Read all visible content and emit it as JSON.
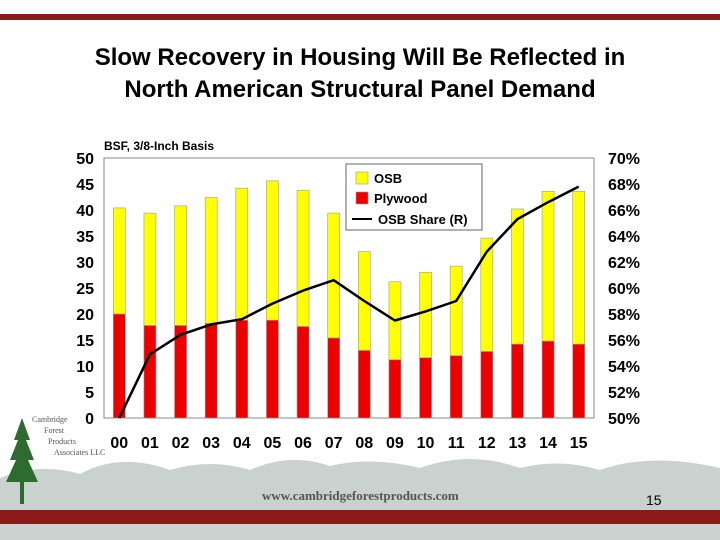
{
  "slide": {
    "title_line1": "Slow Recovery in Housing Will Be Reflected in",
    "title_line2": "North American Structural Panel Demand",
    "logo_line1": "Cambridge",
    "logo_line2": "Forest",
    "logo_line3": "Products",
    "logo_line4": "Associates LLC",
    "website": "www.cambridgeforestproducts.com",
    "page_number": "15"
  },
  "colors": {
    "bar_border": "#8b1a1a",
    "osb": "#ffff00",
    "plywood": "#ee0000",
    "share_line": "#000000",
    "grid_bg": "#ffffff",
    "hills": "#c9d2cf",
    "tree": "#2e6b2e",
    "text_gray": "#555555"
  },
  "chart_data": {
    "type": "bar",
    "stacked": true,
    "unit_label": "BSF, 3/8-Inch Basis",
    "categories": [
      "00",
      "01",
      "02",
      "03",
      "04",
      "05",
      "06",
      "07",
      "08",
      "09",
      "10",
      "11",
      "12",
      "13",
      "14",
      "15"
    ],
    "series": [
      {
        "name": "Plywood",
        "axis": "left",
        "values": [
          20.0,
          17.8,
          17.8,
          18.2,
          18.8,
          18.8,
          17.6,
          15.4,
          13.0,
          11.2,
          11.6,
          12.0,
          12.8,
          14.2,
          14.8,
          14.2
        ]
      },
      {
        "name": "OSB",
        "axis": "left",
        "values": [
          20.4,
          21.6,
          23.0,
          24.2,
          25.4,
          26.8,
          26.2,
          24.0,
          19.0,
          15.0,
          16.4,
          17.2,
          21.8,
          26.0,
          28.8,
          29.4
        ]
      },
      {
        "name": "OSB Share (R)",
        "type": "line",
        "axis": "right",
        "values": [
          50.0,
          54.9,
          56.4,
          57.2,
          57.6,
          58.8,
          59.8,
          60.6,
          59.0,
          57.5,
          58.2,
          59.0,
          62.8,
          65.3,
          66.6,
          67.8
        ]
      }
    ],
    "left_axis": {
      "min": 0,
      "max": 50,
      "step": 5,
      "ticks": [
        "0",
        "5",
        "10",
        "15",
        "20",
        "25",
        "30",
        "35",
        "40",
        "45",
        "50"
      ]
    },
    "right_axis": {
      "min": 50,
      "max": 70,
      "step": 2,
      "ticks": [
        "50%",
        "52%",
        "54%",
        "56%",
        "58%",
        "60%",
        "62%",
        "64%",
        "66%",
        "68%",
        "70%"
      ]
    },
    "legend": {
      "position": "top-right",
      "entries": [
        "OSB",
        "Plywood",
        "OSB Share (R)"
      ]
    }
  }
}
